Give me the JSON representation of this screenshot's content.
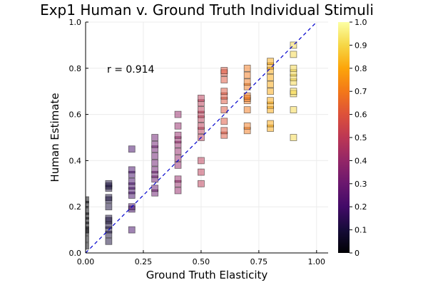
{
  "chart_data": {
    "type": "scatter",
    "title": "Exp1 Human v. Ground Truth Individual Stimuli",
    "xlabel": "Ground Truth Elasticity",
    "ylabel": "Human Estimate",
    "xlim": [
      0,
      1.05
    ],
    "ylim": [
      0,
      1
    ],
    "xticks": [
      "0.00",
      "0.25",
      "0.50",
      "0.75",
      "1.00"
    ],
    "yticks": [
      "0.0",
      "0.2",
      "0.4",
      "0.6",
      "0.8",
      "1.0"
    ],
    "grid": true,
    "annotation": "r = 0.914",
    "reference_line": {
      "style": "dashed",
      "color": "#0000cc",
      "from": [
        0,
        0
      ],
      "to": [
        1,
        1
      ]
    },
    "colorbar": {
      "range": [
        0,
        1
      ],
      "ticks": [
        "0",
        "0.1",
        "0.2",
        "0.3",
        "0.4",
        "0.5",
        "0.6",
        "0.7",
        "0.8",
        "0.9",
        "1.0"
      ],
      "colormap": "inferno"
    },
    "points": [
      {
        "x": 0.0,
        "y": 0.03
      },
      {
        "x": 0.0,
        "y": 0.06
      },
      {
        "x": 0.0,
        "y": 0.09
      },
      {
        "x": 0.0,
        "y": 0.1
      },
      {
        "x": 0.0,
        "y": 0.12
      },
      {
        "x": 0.0,
        "y": 0.14
      },
      {
        "x": 0.0,
        "y": 0.16
      },
      {
        "x": 0.0,
        "y": 0.18
      },
      {
        "x": 0.0,
        "y": 0.21
      },
      {
        "x": 0.0,
        "y": 0.23
      },
      {
        "x": 0.1,
        "y": 0.05
      },
      {
        "x": 0.1,
        "y": 0.08
      },
      {
        "x": 0.1,
        "y": 0.1
      },
      {
        "x": 0.1,
        "y": 0.12
      },
      {
        "x": 0.1,
        "y": 0.14
      },
      {
        "x": 0.1,
        "y": 0.15
      },
      {
        "x": 0.1,
        "y": 0.2
      },
      {
        "x": 0.1,
        "y": 0.23
      },
      {
        "x": 0.1,
        "y": 0.24
      },
      {
        "x": 0.1,
        "y": 0.28
      },
      {
        "x": 0.1,
        "y": 0.29
      },
      {
        "x": 0.1,
        "y": 0.3
      },
      {
        "x": 0.2,
        "y": 0.1
      },
      {
        "x": 0.2,
        "y": 0.19
      },
      {
        "x": 0.2,
        "y": 0.2
      },
      {
        "x": 0.2,
        "y": 0.25
      },
      {
        "x": 0.2,
        "y": 0.27
      },
      {
        "x": 0.2,
        "y": 0.29
      },
      {
        "x": 0.2,
        "y": 0.31
      },
      {
        "x": 0.2,
        "y": 0.34
      },
      {
        "x": 0.2,
        "y": 0.36
      },
      {
        "x": 0.2,
        "y": 0.45
      },
      {
        "x": 0.3,
        "y": 0.26
      },
      {
        "x": 0.3,
        "y": 0.28
      },
      {
        "x": 0.3,
        "y": 0.32
      },
      {
        "x": 0.3,
        "y": 0.34
      },
      {
        "x": 0.3,
        "y": 0.36
      },
      {
        "x": 0.3,
        "y": 0.39
      },
      {
        "x": 0.3,
        "y": 0.42
      },
      {
        "x": 0.3,
        "y": 0.45
      },
      {
        "x": 0.3,
        "y": 0.47
      },
      {
        "x": 0.3,
        "y": 0.5
      },
      {
        "x": 0.4,
        "y": 0.27
      },
      {
        "x": 0.4,
        "y": 0.3
      },
      {
        "x": 0.4,
        "y": 0.32
      },
      {
        "x": 0.4,
        "y": 0.38
      },
      {
        "x": 0.4,
        "y": 0.41
      },
      {
        "x": 0.4,
        "y": 0.44
      },
      {
        "x": 0.4,
        "y": 0.47
      },
      {
        "x": 0.4,
        "y": 0.49
      },
      {
        "x": 0.4,
        "y": 0.51
      },
      {
        "x": 0.4,
        "y": 0.55
      },
      {
        "x": 0.4,
        "y": 0.6
      },
      {
        "x": 0.5,
        "y": 0.3
      },
      {
        "x": 0.5,
        "y": 0.35
      },
      {
        "x": 0.5,
        "y": 0.4
      },
      {
        "x": 0.5,
        "y": 0.5
      },
      {
        "x": 0.5,
        "y": 0.53
      },
      {
        "x": 0.5,
        "y": 0.55
      },
      {
        "x": 0.5,
        "y": 0.58
      },
      {
        "x": 0.5,
        "y": 0.6
      },
      {
        "x": 0.5,
        "y": 0.62
      },
      {
        "x": 0.5,
        "y": 0.65
      },
      {
        "x": 0.5,
        "y": 0.67
      },
      {
        "x": 0.6,
        "y": 0.51
      },
      {
        "x": 0.6,
        "y": 0.53
      },
      {
        "x": 0.6,
        "y": 0.57
      },
      {
        "x": 0.6,
        "y": 0.62
      },
      {
        "x": 0.6,
        "y": 0.66
      },
      {
        "x": 0.6,
        "y": 0.68
      },
      {
        "x": 0.6,
        "y": 0.7
      },
      {
        "x": 0.6,
        "y": 0.75
      },
      {
        "x": 0.6,
        "y": 0.78
      },
      {
        "x": 0.6,
        "y": 0.79
      },
      {
        "x": 0.7,
        "y": 0.53
      },
      {
        "x": 0.7,
        "y": 0.55
      },
      {
        "x": 0.7,
        "y": 0.62
      },
      {
        "x": 0.7,
        "y": 0.66
      },
      {
        "x": 0.7,
        "y": 0.67
      },
      {
        "x": 0.7,
        "y": 0.68
      },
      {
        "x": 0.7,
        "y": 0.72
      },
      {
        "x": 0.7,
        "y": 0.74
      },
      {
        "x": 0.7,
        "y": 0.77
      },
      {
        "x": 0.7,
        "y": 0.8
      },
      {
        "x": 0.8,
        "y": 0.54
      },
      {
        "x": 0.8,
        "y": 0.56
      },
      {
        "x": 0.8,
        "y": 0.62
      },
      {
        "x": 0.8,
        "y": 0.64
      },
      {
        "x": 0.8,
        "y": 0.66
      },
      {
        "x": 0.8,
        "y": 0.7
      },
      {
        "x": 0.8,
        "y": 0.73
      },
      {
        "x": 0.8,
        "y": 0.76
      },
      {
        "x": 0.8,
        "y": 0.79
      },
      {
        "x": 0.8,
        "y": 0.81
      },
      {
        "x": 0.8,
        "y": 0.83
      },
      {
        "x": 0.9,
        "y": 0.5
      },
      {
        "x": 0.9,
        "y": 0.62
      },
      {
        "x": 0.9,
        "y": 0.69
      },
      {
        "x": 0.9,
        "y": 0.7
      },
      {
        "x": 0.9,
        "y": 0.74
      },
      {
        "x": 0.9,
        "y": 0.76
      },
      {
        "x": 0.9,
        "y": 0.78
      },
      {
        "x": 0.9,
        "y": 0.8
      },
      {
        "x": 0.9,
        "y": 0.86
      },
      {
        "x": 0.9,
        "y": 0.9
      }
    ]
  }
}
